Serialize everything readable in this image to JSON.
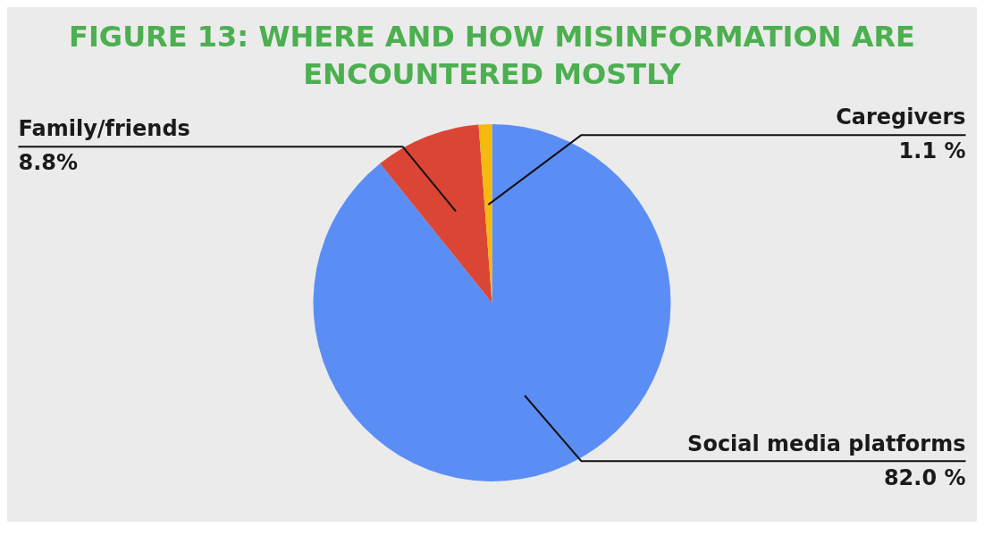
{
  "chart_data": {
    "type": "pie",
    "title": "FIGURE 13: WHERE AND HOW MISINFORMATION ARE ENCOUNTERED MOSTLY",
    "categories": [
      "Social media platforms",
      "Family/friends",
      "Caregivers"
    ],
    "values": [
      82.0,
      8.8,
      1.1
    ],
    "colors": [
      "#5b8ef5",
      "#db4535",
      "#f5b90f"
    ],
    "value_labels": [
      "82.0 %",
      "8.8%",
      "1.1 %"
    ],
    "legend": false
  }
}
